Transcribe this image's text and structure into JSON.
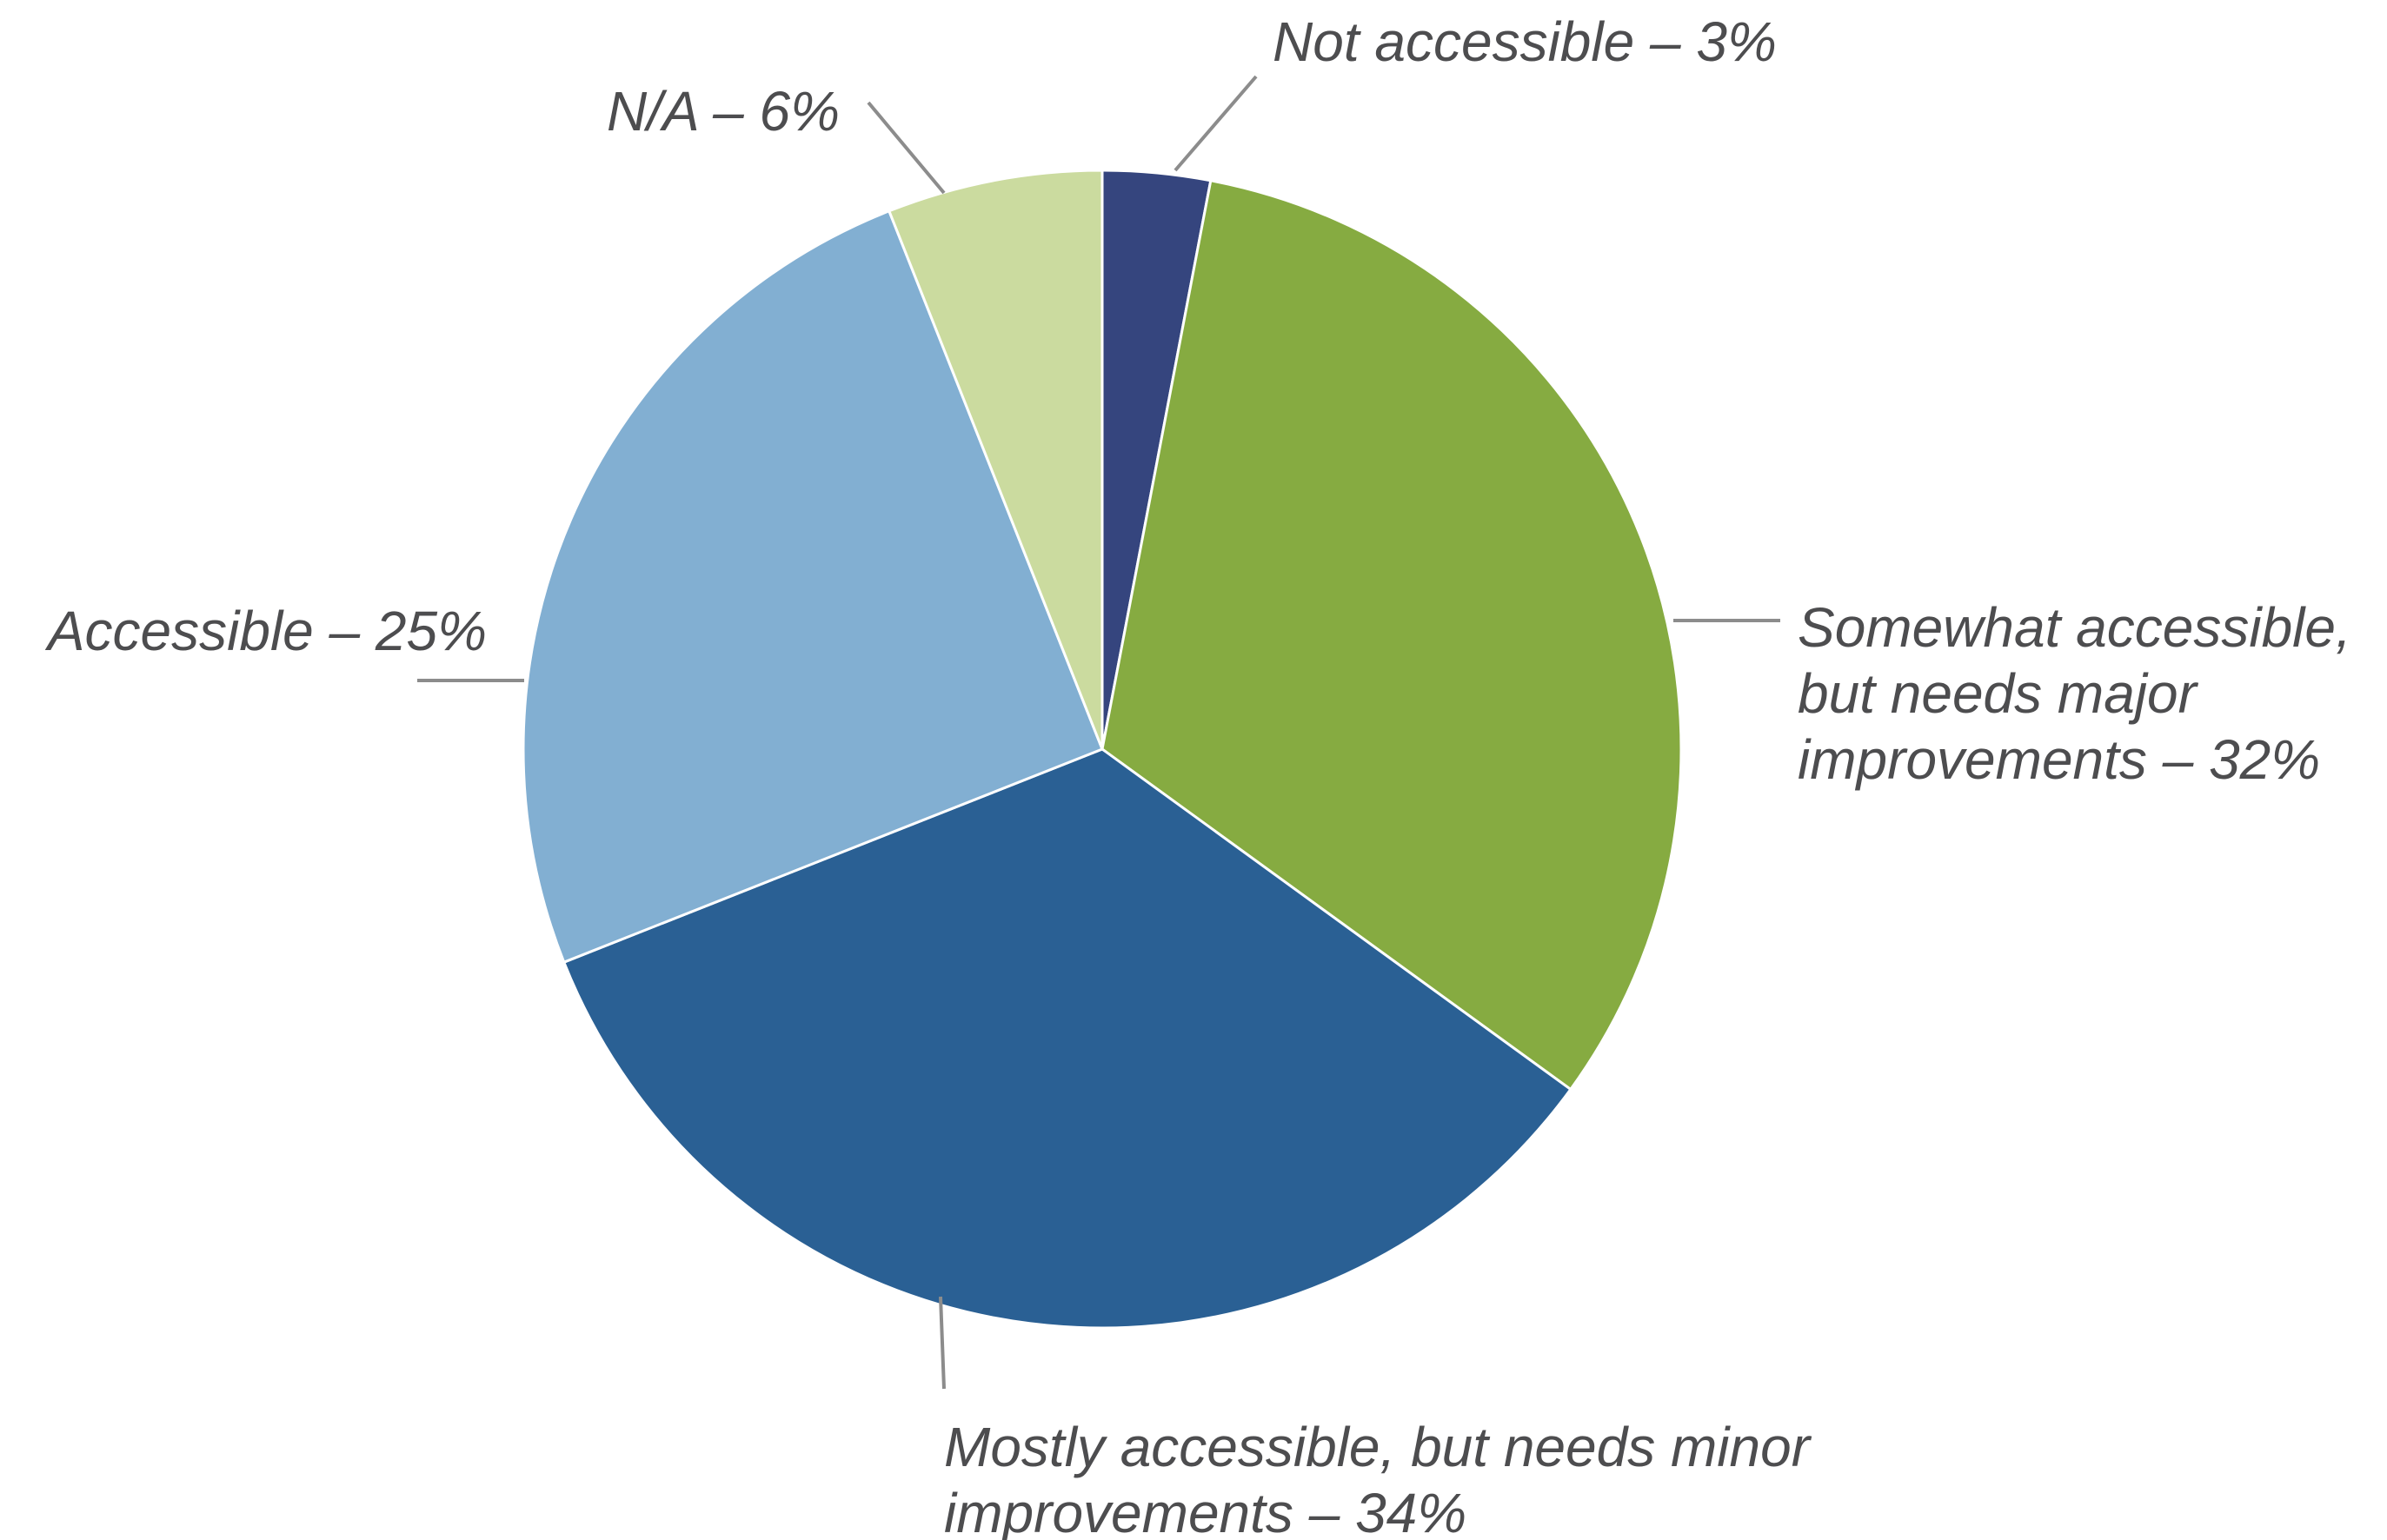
{
  "chart_data": {
    "type": "pie",
    "slices": [
      {
        "label_lines": [
          "Not accessible – 3%"
        ],
        "value": 3,
        "color": "#35457e"
      },
      {
        "label_lines": [
          "Somewhat accessible,",
          "but needs major",
          "improvements – 32%"
        ],
        "value": 32,
        "color": "#86ab41"
      },
      {
        "label_lines": [
          "Mostly accessible, but needs minor",
          "improvements – 34%"
        ],
        "value": 34,
        "color": "#2a6094"
      },
      {
        "label_lines": [
          "Accessible – 25%"
        ],
        "value": 25,
        "color": "#82afd2"
      },
      {
        "label_lines": [
          "N/A – 6%"
        ],
        "value": 6,
        "color": "#cbdb9f"
      }
    ],
    "start_angle_deg": 0,
    "direction": "clockwise"
  }
}
